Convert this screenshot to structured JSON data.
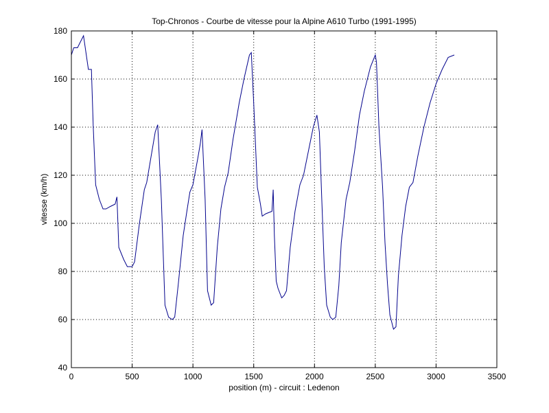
{
  "chart_data": {
    "type": "line",
    "title": "Top-Chronos - Courbe de vitesse pour la Alpine A610 Turbo (1991-1995)",
    "xlabel": "position (m) - circuit : Ledenon",
    "ylabel": "vitesse (km/h)",
    "xlim": [
      0,
      3500
    ],
    "ylim": [
      40,
      180
    ],
    "xticks": [
      0,
      500,
      1000,
      1500,
      2000,
      2500,
      3000,
      3500
    ],
    "yticks": [
      40,
      60,
      80,
      100,
      120,
      140,
      160,
      180
    ],
    "grid": true,
    "line_color": "#00008b",
    "series": [
      {
        "x": [
          0,
          20,
          50,
          70,
          100,
          140,
          165,
          180,
          200,
          230,
          260,
          285,
          320,
          360,
          375,
          390,
          430,
          460,
          500,
          520,
          560,
          600,
          620,
          650,
          690,
          710,
          740,
          770,
          800,
          830,
          850,
          880,
          920,
          950,
          975,
          1000,
          1040,
          1060,
          1075,
          1100,
          1120,
          1150,
          1170,
          1200,
          1230,
          1260,
          1290,
          1330,
          1380,
          1420,
          1465,
          1480,
          1500,
          1530,
          1555,
          1570,
          1600,
          1650,
          1660,
          1670,
          1685,
          1700,
          1730,
          1750,
          1770,
          1800,
          1840,
          1880,
          1910,
          1950,
          1990,
          2020,
          2040,
          2060,
          2080,
          2100,
          2130,
          2150,
          2175,
          2200,
          2220,
          2260,
          2290,
          2330,
          2370,
          2410,
          2460,
          2500,
          2510,
          2530,
          2560,
          2580,
          2600,
          2620,
          2650,
          2670,
          2690,
          2720,
          2750,
          2780,
          2810,
          2850,
          2900,
          2950,
          3000,
          3050,
          3100,
          3150
        ],
        "y": [
          170,
          173,
          173,
          175,
          178,
          164,
          164,
          140,
          116,
          110,
          106,
          106,
          107,
          108,
          111,
          90,
          85,
          82,
          82,
          84,
          100,
          114,
          117,
          126,
          138,
          141,
          110,
          66,
          61,
          60,
          61,
          75,
          95,
          105,
          113,
          116,
          127,
          133,
          139,
          110,
          72,
          66,
          67,
          90,
          106,
          115,
          121,
          135,
          150,
          160,
          170,
          171,
          150,
          115,
          108,
          103,
          104,
          105,
          114,
          95,
          76,
          73,
          69,
          70,
          72,
          90,
          105,
          116,
          120,
          130,
          140,
          145,
          138,
          110,
          82,
          66,
          61,
          60,
          61,
          74,
          92,
          110,
          117,
          130,
          145,
          155,
          165,
          170,
          167,
          140,
          115,
          92,
          75,
          62,
          56,
          57,
          78,
          95,
          107,
          115,
          117,
          128,
          140,
          150,
          158,
          164,
          169,
          170
        ]
      }
    ]
  }
}
